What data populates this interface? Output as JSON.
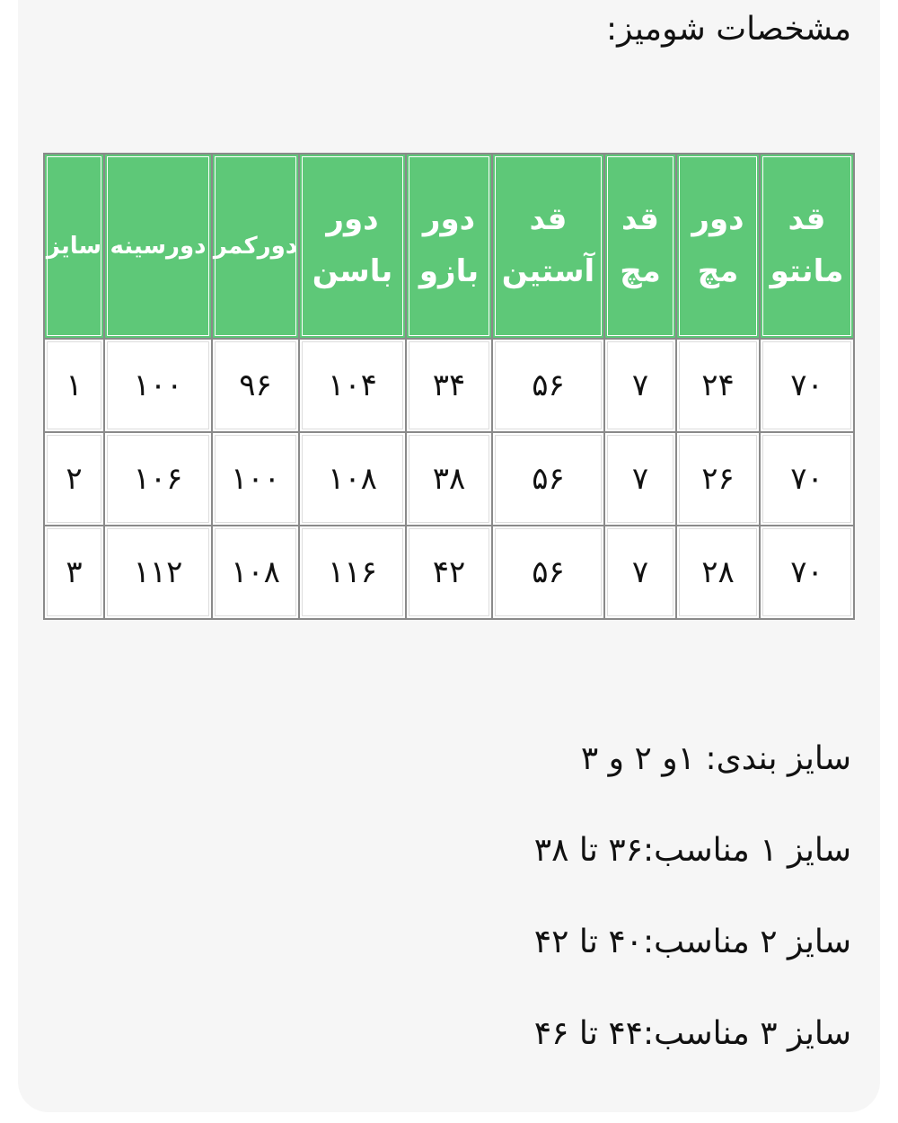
{
  "title": "مشخصات شومیز:",
  "table": {
    "headers": [
      [
        "قد",
        "مانتو"
      ],
      [
        "دور",
        "مچ"
      ],
      [
        "قد",
        "مچ"
      ],
      [
        "قد",
        "آستین"
      ],
      [
        "دور",
        "بازو"
      ],
      [
        "دور",
        "باسن"
      ],
      [
        "دورکمر"
      ],
      [
        "دورسینه"
      ],
      [
        "سایز"
      ]
    ],
    "rows": [
      [
        "۷۰",
        "۲۴",
        "۷",
        "۵۶",
        "۳۴",
        "۱۰۴",
        "۹۶",
        "۱۰۰",
        "۱"
      ],
      [
        "۷۰",
        "۲۶",
        "۷",
        "۵۶",
        "۳۸",
        "۱۰۸",
        "۱۰۰",
        "۱۰۶",
        "۲"
      ],
      [
        "۷۰",
        "۲۸",
        "۷",
        "۵۶",
        "۴۲",
        "۱۱۶",
        "۱۰۸",
        "۱۱۲",
        "۳"
      ]
    ]
  },
  "notes": [
    "سایز بندی: ۱و ۲ و ۳",
    "سایز ۱ مناسب:۳۶ تا ۳۸",
    "سایز ۲ مناسب:۴۰ تا ۴۲",
    "سایز ۳ مناسب:۴۴ تا ۴۶"
  ],
  "colors": {
    "header_bg": "#5ec878",
    "card_bg": "#f6f6f6"
  }
}
